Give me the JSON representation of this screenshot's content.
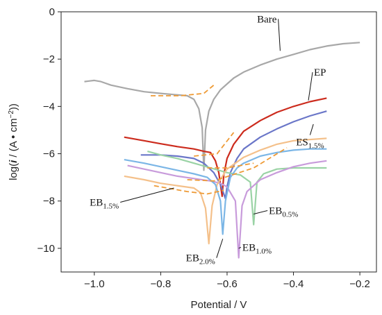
{
  "chart_data": {
    "type": "line",
    "xlabel": "Potential / V",
    "ylabel_parts": [
      "log(",
      "i",
      " / (A • cm",
      "−2",
      "))"
    ],
    "xlim": [
      -1.1,
      -0.15
    ],
    "ylim": [
      -11,
      0
    ],
    "x_ticks": [
      {
        "value": -1.0,
        "label": "−1.0"
      },
      {
        "value": -0.8,
        "label": "−0.8"
      },
      {
        "value": -0.6,
        "label": "−0.6"
      },
      {
        "value": -0.4,
        "label": "−0.4"
      },
      {
        "value": -0.2,
        "label": "−0.2"
      }
    ],
    "y_ticks": [
      {
        "value": 0,
        "label": "0"
      },
      {
        "value": -2,
        "label": "−2"
      },
      {
        "value": -4,
        "label": "−4"
      },
      {
        "value": -6,
        "label": "−6"
      },
      {
        "value": -8,
        "label": "−8"
      },
      {
        "value": -10,
        "label": "−10"
      }
    ],
    "grid": false,
    "series": [
      {
        "label_main": "Bare",
        "label_sub": "",
        "color": "#a8a8a8",
        "points": [
          [
            -1.03,
            -2.95
          ],
          [
            -1.0,
            -2.9
          ],
          [
            -0.98,
            -2.95
          ],
          [
            -0.95,
            -3.1
          ],
          [
            -0.9,
            -3.25
          ],
          [
            -0.85,
            -3.38
          ],
          [
            -0.8,
            -3.45
          ],
          [
            -0.76,
            -3.5
          ],
          [
            -0.72,
            -3.55
          ],
          [
            -0.7,
            -3.7
          ],
          [
            -0.685,
            -4.1
          ],
          [
            -0.675,
            -4.9
          ],
          [
            -0.67,
            -6.7
          ],
          [
            -0.665,
            -5.0
          ],
          [
            -0.655,
            -4.2
          ],
          [
            -0.64,
            -3.7
          ],
          [
            -0.62,
            -3.3
          ],
          [
            -0.6,
            -3.05
          ],
          [
            -0.58,
            -2.8
          ],
          [
            -0.55,
            -2.55
          ],
          [
            -0.5,
            -2.25
          ],
          [
            -0.45,
            -2.0
          ],
          [
            -0.4,
            -1.8
          ],
          [
            -0.35,
            -1.6
          ],
          [
            -0.3,
            -1.45
          ],
          [
            -0.25,
            -1.35
          ],
          [
            -0.2,
            -1.3
          ]
        ]
      },
      {
        "label_main": "EP",
        "label_sub": "",
        "color": "#cc2b1d",
        "points": [
          [
            -0.91,
            -5.3
          ],
          [
            -0.85,
            -5.45
          ],
          [
            -0.8,
            -5.58
          ],
          [
            -0.75,
            -5.7
          ],
          [
            -0.7,
            -5.8
          ],
          [
            -0.67,
            -5.9
          ],
          [
            -0.65,
            -5.95
          ],
          [
            -0.635,
            -6.3
          ],
          [
            -0.625,
            -6.8
          ],
          [
            -0.615,
            -7.8
          ],
          [
            -0.61,
            -6.9
          ],
          [
            -0.6,
            -6.2
          ],
          [
            -0.58,
            -5.6
          ],
          [
            -0.55,
            -5.05
          ],
          [
            -0.5,
            -4.6
          ],
          [
            -0.45,
            -4.25
          ],
          [
            -0.4,
            -4.0
          ],
          [
            -0.35,
            -3.8
          ],
          [
            -0.3,
            -3.65
          ]
        ]
      },
      {
        "label_main": "ES",
        "label_sub": "1.5%",
        "color": "#6a76c8",
        "points": [
          [
            -0.86,
            -6.05
          ],
          [
            -0.8,
            -6.05
          ],
          [
            -0.75,
            -6.1
          ],
          [
            -0.7,
            -6.2
          ],
          [
            -0.67,
            -6.4
          ],
          [
            -0.64,
            -6.8
          ],
          [
            -0.62,
            -7.3
          ],
          [
            -0.605,
            -7.9
          ],
          [
            -0.6,
            -7.4
          ],
          [
            -0.59,
            -6.8
          ],
          [
            -0.57,
            -6.2
          ],
          [
            -0.55,
            -5.8
          ],
          [
            -0.5,
            -5.3
          ],
          [
            -0.45,
            -4.95
          ],
          [
            -0.4,
            -4.65
          ],
          [
            -0.35,
            -4.4
          ],
          [
            -0.3,
            -4.2
          ]
        ]
      },
      {
        "label_main": "EB",
        "label_sub": "0.5%",
        "color": "#9ad3a5",
        "points": [
          [
            -0.84,
            -5.9
          ],
          [
            -0.8,
            -6.05
          ],
          [
            -0.75,
            -6.2
          ],
          [
            -0.7,
            -6.4
          ],
          [
            -0.65,
            -6.6
          ],
          [
            -0.6,
            -6.8
          ],
          [
            -0.56,
            -6.9
          ],
          [
            -0.53,
            -7.2
          ],
          [
            -0.52,
            -9.0
          ],
          [
            -0.51,
            -7.2
          ],
          [
            -0.49,
            -6.85
          ],
          [
            -0.45,
            -6.65
          ],
          [
            -0.4,
            -6.6
          ],
          [
            -0.35,
            -6.6
          ],
          [
            -0.3,
            -6.6
          ]
        ]
      },
      {
        "label_main": "EB",
        "label_sub": "1.0%",
        "color": "#c89bdb",
        "points": [
          [
            -0.9,
            -6.5
          ],
          [
            -0.85,
            -6.65
          ],
          [
            -0.8,
            -6.8
          ],
          [
            -0.75,
            -6.95
          ],
          [
            -0.7,
            -7.05
          ],
          [
            -0.65,
            -7.15
          ],
          [
            -0.62,
            -7.25
          ],
          [
            -0.6,
            -7.4
          ],
          [
            -0.575,
            -8.0
          ],
          [
            -0.565,
            -10.4
          ],
          [
            -0.555,
            -8.2
          ],
          [
            -0.54,
            -7.6
          ],
          [
            -0.5,
            -7.1
          ],
          [
            -0.45,
            -6.8
          ],
          [
            -0.4,
            -6.55
          ],
          [
            -0.35,
            -6.4
          ],
          [
            -0.3,
            -6.3
          ]
        ]
      },
      {
        "label_main": "EB",
        "label_sub": "1.5%",
        "color": "#f4c08a",
        "points": [
          [
            -0.91,
            -6.95
          ],
          [
            -0.85,
            -7.1
          ],
          [
            -0.8,
            -7.25
          ],
          [
            -0.75,
            -7.35
          ],
          [
            -0.7,
            -7.45
          ],
          [
            -0.68,
            -7.65
          ],
          [
            -0.665,
            -8.3
          ],
          [
            -0.655,
            -9.8
          ],
          [
            -0.645,
            -8.2
          ],
          [
            -0.63,
            -7.3
          ],
          [
            -0.6,
            -6.65
          ],
          [
            -0.55,
            -6.15
          ],
          [
            -0.5,
            -5.85
          ],
          [
            -0.45,
            -5.6
          ],
          [
            -0.4,
            -5.45
          ],
          [
            -0.3,
            -5.35
          ]
        ]
      },
      {
        "label_main": "EB",
        "label_sub": "2.0%",
        "color": "#7bb6e6",
        "points": [
          [
            -0.91,
            -6.25
          ],
          [
            -0.85,
            -6.4
          ],
          [
            -0.8,
            -6.55
          ],
          [
            -0.75,
            -6.7
          ],
          [
            -0.7,
            -6.85
          ],
          [
            -0.66,
            -7.0
          ],
          [
            -0.635,
            -7.3
          ],
          [
            -0.62,
            -8.0
          ],
          [
            -0.613,
            -9.4
          ],
          [
            -0.605,
            -8.0
          ],
          [
            -0.59,
            -7.0
          ],
          [
            -0.57,
            -6.6
          ],
          [
            -0.55,
            -6.4
          ],
          [
            -0.5,
            -6.1
          ],
          [
            -0.45,
            -5.95
          ],
          [
            -0.4,
            -5.85
          ],
          [
            -0.35,
            -5.8
          ],
          [
            -0.3,
            -5.8
          ]
        ]
      }
    ],
    "tafel_fits": [
      {
        "color": "#ee9a35",
        "points": [
          [
            -0.83,
            -3.55
          ],
          [
            -0.74,
            -3.55
          ],
          [
            -0.67,
            -3.45
          ],
          [
            -0.64,
            -3.1
          ]
        ]
      },
      {
        "color": "#ee9a35",
        "points": [
          [
            -0.7,
            -6.1
          ],
          [
            -0.63,
            -6.0
          ],
          [
            -0.58,
            -5.1
          ]
        ]
      },
      {
        "color": "#ee9a35",
        "points": [
          [
            -0.72,
            -7.1
          ],
          [
            -0.64,
            -7.15
          ],
          [
            -0.52,
            -6.6
          ],
          [
            -0.42,
            -5.75
          ]
        ]
      },
      {
        "color": "#ee9a35",
        "points": [
          [
            -0.82,
            -7.35
          ],
          [
            -0.72,
            -7.6
          ],
          [
            -0.66,
            -7.7
          ],
          [
            -0.61,
            -7.55
          ]
        ]
      },
      {
        "color": "#ee9a35",
        "points": [
          [
            -0.66,
            -6.6
          ],
          [
            -0.6,
            -6.6
          ],
          [
            -0.52,
            -6.4
          ]
        ]
      }
    ],
    "annotations": [
      {
        "text_main": "Bare",
        "text_sub": "",
        "lx": -0.48,
        "ly": -0.45,
        "tx": -0.44,
        "ty": -1.65
      },
      {
        "text_main": "EP",
        "text_sub": "",
        "lx": -0.32,
        "ly": -2.7,
        "tx": -0.355,
        "ty": -3.75
      },
      {
        "text_main": "ES",
        "text_sub": "1.5%",
        "lx": -0.35,
        "ly": -5.65,
        "tx": -0.34,
        "ty": -4.75
      },
      {
        "text_main": "EB",
        "text_sub": "1.5%",
        "lx": -0.97,
        "ly": -8.2,
        "tx": -0.76,
        "ty": -7.45
      },
      {
        "text_main": "EB",
        "text_sub": "0.5%",
        "lx": -0.43,
        "ly": -8.55,
        "tx": -0.52,
        "ty": -8.55
      },
      {
        "text_main": "EB",
        "text_sub": "2.0%",
        "lx": -0.68,
        "ly": -10.55,
        "tx": -0.613,
        "ty": -9.6
      },
      {
        "text_main": "EB",
        "text_sub": "1.0%",
        "lx": -0.51,
        "ly": -10.1,
        "tx": -0.565,
        "ty": -10.0
      }
    ]
  }
}
